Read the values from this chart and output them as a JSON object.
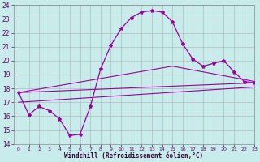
{
  "xlabel": "Windchill (Refroidissement éolien,°C)",
  "background_color": "#c8ecec",
  "line_color": "#990099",
  "grid_color": "#b0b0b0",
  "xlim": [
    -0.5,
    23
  ],
  "ylim": [
    14,
    24
  ],
  "yticks": [
    14,
    15,
    16,
    17,
    18,
    19,
    20,
    21,
    22,
    23,
    24
  ],
  "xticks": [
    0,
    1,
    2,
    3,
    4,
    5,
    6,
    7,
    8,
    9,
    10,
    11,
    12,
    13,
    14,
    15,
    16,
    17,
    18,
    19,
    20,
    21,
    22,
    23
  ],
  "line1_x": [
    0,
    1,
    2,
    3,
    4,
    5,
    6,
    7,
    8,
    9,
    10,
    11,
    12,
    13,
    14,
    15,
    16,
    17,
    18,
    19,
    20,
    21,
    22,
    23
  ],
  "line1_y": [
    17.7,
    16.1,
    16.7,
    16.4,
    15.8,
    14.6,
    14.7,
    16.7,
    19.4,
    21.1,
    22.3,
    23.1,
    23.5,
    23.6,
    23.5,
    22.8,
    21.2,
    20.1,
    19.6,
    19.8,
    20.0,
    19.2,
    18.5,
    18.4
  ],
  "line2_x": [
    0,
    23
  ],
  "line2_y": [
    17.7,
    18.4
  ],
  "line3_x": [
    0,
    15,
    23
  ],
  "line3_y": [
    17.7,
    19.6,
    18.5
  ],
  "line4_x": [
    0,
    23
  ],
  "line4_y": [
    17.0,
    18.1
  ]
}
